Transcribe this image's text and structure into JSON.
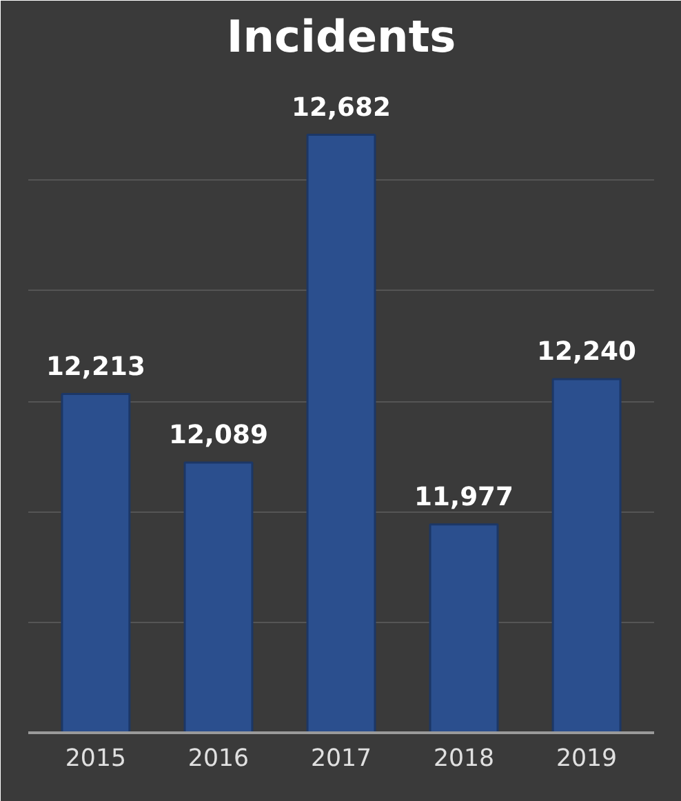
{
  "chart_data": {
    "type": "bar",
    "title": "Incidents",
    "categories": [
      "2015",
      "2016",
      "2017",
      "2018",
      "2019"
    ],
    "values": [
      12213,
      12089,
      12682,
      11977,
      12240
    ],
    "color": "#2b4f8e",
    "ylim": [
      11600,
      12800
    ],
    "value_labels": [
      "12,213",
      "12,089",
      "12,682",
      "11,977",
      "12,240"
    ],
    "grid": "y",
    "tick_labels": "x"
  }
}
